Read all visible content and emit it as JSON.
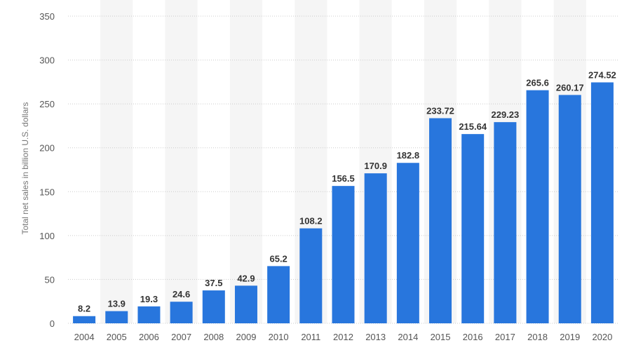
{
  "chart_data": {
    "type": "bar",
    "categories": [
      "2004",
      "2005",
      "2006",
      "2007",
      "2008",
      "2009",
      "2010",
      "2011",
      "2012",
      "2013",
      "2014",
      "2015",
      "2016",
      "2017",
      "2018",
      "2019",
      "2020"
    ],
    "values": [
      8.2,
      13.9,
      19.3,
      24.6,
      37.5,
      42.9,
      65.2,
      108.2,
      156.5,
      170.9,
      182.8,
      233.72,
      215.64,
      229.23,
      265.6,
      260.17,
      274.52
    ],
    "value_labels": [
      "8.2",
      "13.9",
      "19.3",
      "24.6",
      "37.5",
      "42.9",
      "65.2",
      "108.2",
      "156.5",
      "170.9",
      "182.8",
      "233.72",
      "215.64",
      "229.23",
      "265.6",
      "260.17",
      "274.52"
    ],
    "ylabel": "Total net sales in billion U.S. dollars",
    "xlabel": "",
    "ylim": [
      0,
      350
    ],
    "yticks": [
      "0",
      "50",
      "100",
      "150",
      "200",
      "250",
      "300",
      "350"
    ],
    "grid": true,
    "bar_color": "#2876dd",
    "band_color": "#f5f5f5",
    "grid_color": "#cccccc"
  }
}
